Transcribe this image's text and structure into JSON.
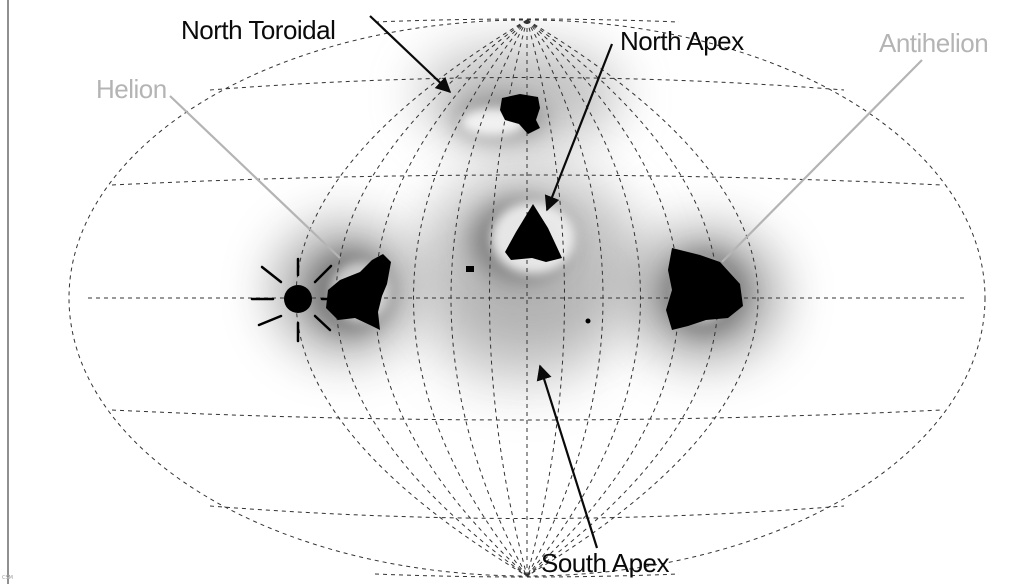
{
  "labels": {
    "north_toroidal": "North Toroidal",
    "north_apex": "North Apex",
    "antihelion": "Antihelion",
    "helion": "Helion",
    "south_apex": "South Apex"
  },
  "credit": "CSM",
  "colors": {
    "annotation_dark": "#0a0a0a",
    "annotation_light": "#b4b4b4",
    "source_fill": "#000000",
    "glow": "#8c8c8c",
    "grid": "#333333"
  },
  "icons": {
    "sun": "sun-icon"
  }
}
